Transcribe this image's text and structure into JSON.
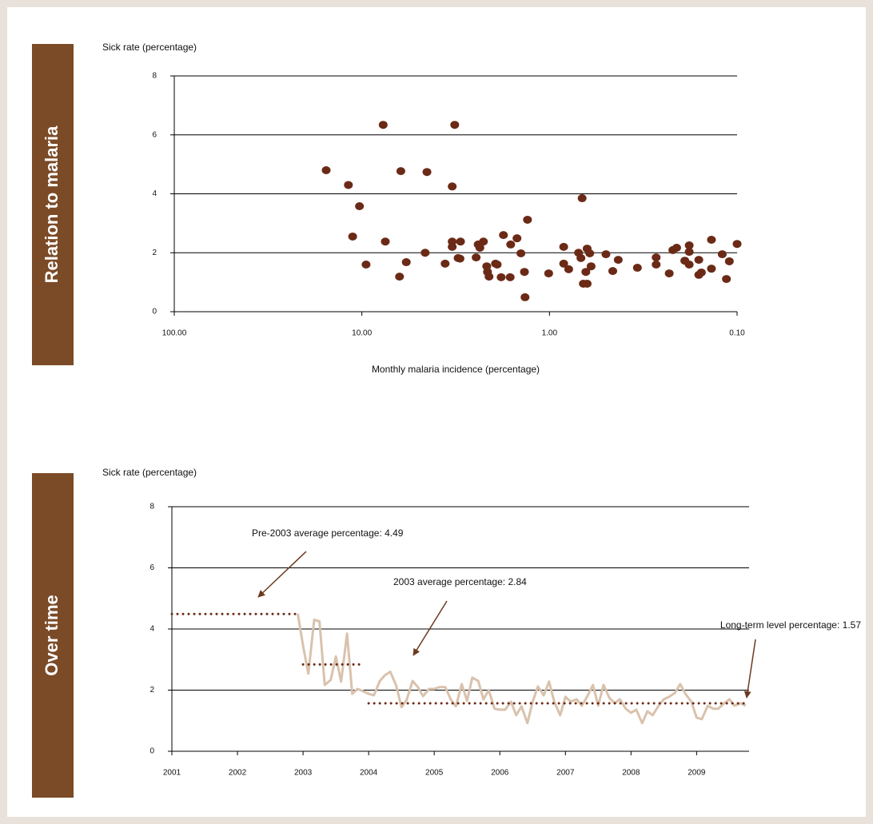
{
  "chart_data": [
    {
      "type": "scatter",
      "panel_label": "Relation to malaria",
      "y_label": "Sick rate (percentage)",
      "x_label": "Monthly malaria incidence (percentage)",
      "x_scale": "log",
      "xlim": [
        100,
        0.1
      ],
      "xticks": [
        {
          "value": 100,
          "label": "100.00"
        },
        {
          "value": 10,
          "label": "10.00"
        },
        {
          "value": 1,
          "label": "1.00"
        },
        {
          "value": 0.1,
          "label": "0.10"
        }
      ],
      "ylim": [
        0,
        8
      ],
      "yticks": [
        0,
        2,
        4,
        6,
        8
      ],
      "grid": true,
      "color": "#6b2a16",
      "x": [
        15.5,
        11.8,
        11.2,
        10.3,
        9.5,
        7.7,
        7.5,
        6.3,
        6.2,
        5.8,
        4.6,
        4.5,
        3.6,
        3.3,
        3.2,
        3.3,
        3.3,
        3.07,
        2.98,
        3.0,
        2.46,
        2.4,
        2.35,
        2.25,
        2.16,
        2.14,
        2.1,
        1.94,
        1.9,
        1.81,
        1.76,
        1.62,
        1.61,
        1.49,
        1.42,
        1.36,
        1.35,
        1.31,
        1.01,
        0.84,
        0.84,
        0.79,
        0.7,
        0.68,
        0.67,
        0.66,
        0.63,
        0.64,
        0.63,
        0.61,
        0.6,
        0.5,
        0.46,
        0.43,
        0.34,
        0.27,
        0.27,
        0.23,
        0.22,
        0.21,
        0.19,
        0.18,
        0.18,
        0.18,
        0.16,
        0.16,
        0.155,
        0.137,
        0.137,
        0.12,
        0.114,
        0.11,
        0.1
      ],
      "values": [
        4.8,
        4.3,
        2.55,
        3.58,
        1.6,
        6.34,
        2.38,
        1.19,
        4.77,
        1.68,
        2.0,
        4.74,
        1.63,
        4.25,
        6.34,
        2.38,
        2.2,
        1.82,
        2.38,
        1.8,
        1.84,
        2.28,
        2.17,
        2.38,
        1.54,
        1.35,
        1.19,
        1.63,
        1.6,
        1.17,
        2.6,
        1.17,
        2.28,
        2.49,
        1.98,
        1.35,
        0.49,
        3.12,
        1.3,
        2.2,
        1.63,
        1.44,
        2.0,
        1.82,
        3.85,
        0.95,
        0.95,
        1.35,
        2.14,
        1.98,
        1.54,
        1.95,
        1.38,
        1.76,
        1.49,
        1.84,
        1.6,
        1.3,
        2.09,
        2.17,
        1.73,
        1.6,
        2.25,
        2.03,
        1.25,
        1.76,
        1.33,
        2.44,
        1.46,
        1.95,
        1.11,
        1.71,
        2.3
      ]
    },
    {
      "type": "line",
      "panel_label": "Over time",
      "y_label": "Sick rate (percentage)",
      "xlim": [
        2001,
        2009.8
      ],
      "xticks": [
        2001,
        2002,
        2003,
        2004,
        2005,
        2006,
        2007,
        2008,
        2009
      ],
      "ylim": [
        0,
        8
      ],
      "yticks": [
        0,
        2,
        4,
        6,
        8
      ],
      "grid": true,
      "color": "#d9c2ad",
      "x": [
        2002.92,
        2003.0,
        2003.08,
        2003.17,
        2003.25,
        2003.33,
        2003.42,
        2003.5,
        2003.58,
        2003.67,
        2003.75,
        2003.83,
        2003.92,
        2004.0,
        2004.08,
        2004.17,
        2004.25,
        2004.33,
        2004.42,
        2004.5,
        2004.58,
        2004.67,
        2004.75,
        2004.83,
        2004.92,
        2005.0,
        2005.08,
        2005.17,
        2005.25,
        2005.33,
        2005.42,
        2005.5,
        2005.58,
        2005.67,
        2005.75,
        2005.83,
        2005.92,
        2006.0,
        2006.08,
        2006.17,
        2006.25,
        2006.33,
        2006.42,
        2006.5,
        2006.58,
        2006.67,
        2006.75,
        2006.83,
        2006.92,
        2007.0,
        2007.08,
        2007.17,
        2007.25,
        2007.33,
        2007.42,
        2007.5,
        2007.58,
        2007.67,
        2007.75,
        2007.83,
        2007.92,
        2008.0,
        2008.08,
        2008.17,
        2008.25,
        2008.33,
        2008.42,
        2008.5,
        2008.58,
        2008.67,
        2008.75,
        2008.83,
        2008.92,
        2009.0,
        2009.08,
        2009.17,
        2009.25,
        2009.33,
        2009.42,
        2009.5,
        2009.58,
        2009.67,
        2009.75
      ],
      "values": [
        4.5,
        3.45,
        2.54,
        4.3,
        4.25,
        2.17,
        2.33,
        3.1,
        2.28,
        3.85,
        1.88,
        2.04,
        1.96,
        1.88,
        1.83,
        2.3,
        2.49,
        2.6,
        2.15,
        1.44,
        1.68,
        2.3,
        2.1,
        1.8,
        2.04,
        2.04,
        2.1,
        2.1,
        1.7,
        1.47,
        2.2,
        1.65,
        2.41,
        2.3,
        1.7,
        2.0,
        1.39,
        1.36,
        1.36,
        1.62,
        1.18,
        1.47,
        0.92,
        1.62,
        2.12,
        1.83,
        2.28,
        1.62,
        1.18,
        1.78,
        1.62,
        1.7,
        1.49,
        1.78,
        2.17,
        1.49,
        2.17,
        1.75,
        1.57,
        1.7,
        1.39,
        1.26,
        1.36,
        0.92,
        1.31,
        1.18,
        1.49,
        1.7,
        1.78,
        1.91,
        2.2,
        1.88,
        1.62,
        1.1,
        1.05,
        1.49,
        1.39,
        1.39,
        1.57,
        1.7,
        1.49,
        1.57,
        1.49
      ],
      "reference_lines": [
        {
          "label": "Pre-2003 average percentage: 4.49",
          "value": 4.49,
          "x": [
            2001,
            2002.9
          ],
          "color": "#6b2a16"
        },
        {
          "label": "2003 average percentage: 2.84",
          "value": 2.84,
          "x": [
            2003,
            2003.92
          ],
          "color": "#6b2a16"
        },
        {
          "label": "Long-term level percentage: 1.57",
          "value": 1.57,
          "x": [
            2004,
            2009.75
          ],
          "color": "#6b2a16"
        }
      ]
    }
  ]
}
